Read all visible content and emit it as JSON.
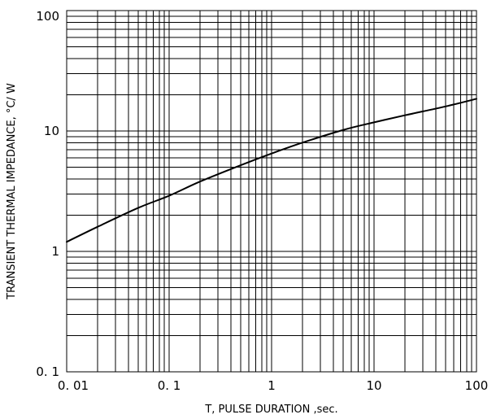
{
  "chart_data": {
    "type": "line",
    "title": "",
    "xlabel": "T, PULSE DURATION ,sec.",
    "ylabel": "TRANSIENT THERMAL IMPEDANCE, °C/ W",
    "x_scale": "log",
    "y_scale": "log",
    "xlim": [
      0.01,
      100
    ],
    "ylim": [
      0.1,
      100
    ],
    "x_ticks": [
      0.01,
      0.1,
      1,
      10,
      100
    ],
    "x_tick_labels": [
      "0. 01",
      "0. 1",
      "1",
      "10",
      "100"
    ],
    "y_ticks": [
      0.1,
      1,
      10,
      100
    ],
    "y_tick_labels": [
      "0. 1",
      "1",
      "10",
      "100"
    ],
    "grid": true,
    "legend": "none",
    "series": [
      {
        "x": [
          0.01,
          0.02,
          0.05,
          0.1,
          0.2,
          0.5,
          1,
          2,
          5,
          10,
          20,
          50,
          100
        ],
        "y": [
          1.2,
          1.6,
          2.3,
          2.9,
          3.8,
          5.2,
          6.5,
          8.0,
          10.2,
          11.8,
          13.5,
          16.0,
          18.5
        ]
      }
    ],
    "colors": {
      "line": "#000000",
      "grid": "#000000",
      "background": "#ffffff"
    }
  }
}
